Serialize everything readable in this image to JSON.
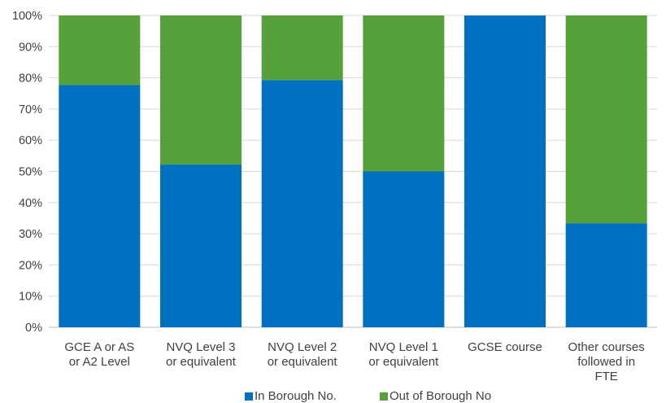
{
  "chart_data": {
    "type": "bar",
    "stacked": true,
    "percent": true,
    "categories": [
      [
        "GCE A or AS",
        "or A2 Level"
      ],
      [
        "NVQ Level 3",
        "or equivalent"
      ],
      [
        "NVQ Level 2",
        "or equivalent"
      ],
      [
        "NVQ Level 1",
        "or equivalent"
      ],
      [
        "GCSE course"
      ],
      [
        "Other courses",
        "followed in",
        "FTE"
      ]
    ],
    "series": [
      {
        "name": "In Borough No.",
        "color": "#0070C0",
        "values": [
          77.7,
          52.2,
          79.3,
          50.0,
          100.0,
          33.3
        ]
      },
      {
        "name": "Out of Borough No",
        "color": "#56A139",
        "values": [
          22.3,
          47.8,
          20.7,
          50.0,
          0.0,
          66.7
        ]
      }
    ],
    "y_ticks": [
      "0%",
      "10%",
      "20%",
      "30%",
      "40%",
      "50%",
      "60%",
      "70%",
      "80%",
      "90%",
      "100%"
    ],
    "ylim": [
      0,
      100
    ],
    "grid": true,
    "legend_position": "bottom"
  }
}
